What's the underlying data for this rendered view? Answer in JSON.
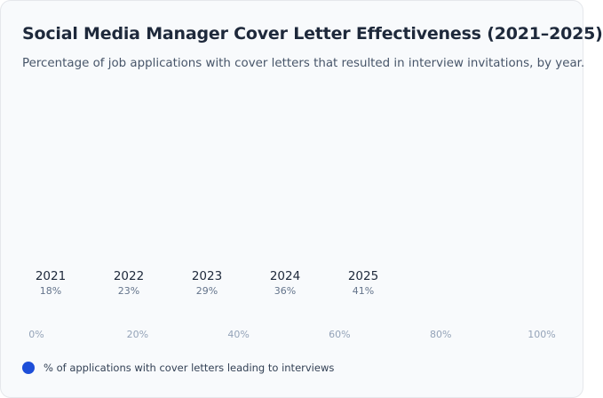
{
  "chart_data": {
    "type": "bar",
    "orientation": "horizontal",
    "title": "Social Media Manager Cover Letter Effectiveness (2021–2025)",
    "subtitle": "Percentage of job applications with cover letters that resulted in interview invitations, by year.",
    "categories": [
      "2021",
      "2022",
      "2023",
      "2024",
      "2025"
    ],
    "values": [
      18,
      23,
      29,
      36,
      41
    ],
    "value_labels": [
      "18%",
      "23%",
      "29%",
      "36%",
      "41%"
    ],
    "series": [
      {
        "name": "% of applications with cover letters leading to interviews",
        "values": [
          18,
          23,
          29,
          36,
          41
        ],
        "color": "#1d4ed8"
      }
    ],
    "xlim": [
      0,
      100
    ],
    "tick_labels": [
      "0%",
      "20%",
      "40%",
      "60%",
      "80%",
      "100%"
    ],
    "grid": false,
    "legend_position": "bottom-left"
  }
}
